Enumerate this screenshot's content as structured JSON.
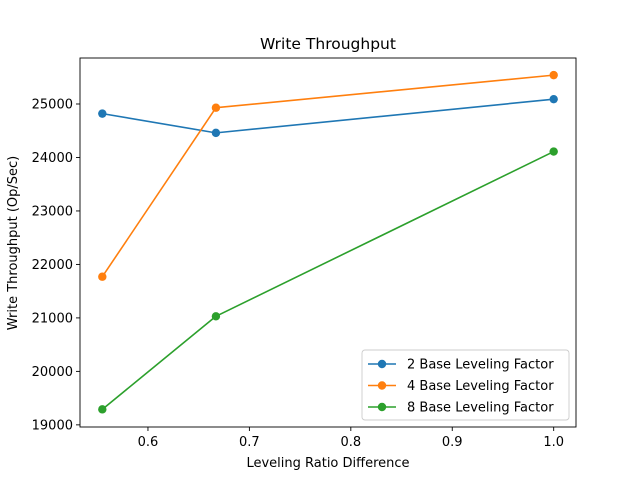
{
  "chart_data": {
    "type": "line",
    "title": "Write Throughput",
    "xlabel": "Leveling Ratio Difference",
    "ylabel": "Write Throughput (Op/Sec)",
    "xlim": [
      0.533,
      1.022
    ],
    "ylim": [
      18960,
      25860
    ],
    "xticks": [
      0.6,
      0.7,
      0.8,
      0.9,
      1.0
    ],
    "xtick_labels": [
      "0.6",
      "0.7",
      "0.8",
      "0.9",
      "1.0"
    ],
    "yticks": [
      19000,
      20000,
      21000,
      22000,
      23000,
      24000,
      25000
    ],
    "ytick_labels": [
      "19000",
      "20000",
      "21000",
      "22000",
      "23000",
      "24000",
      "25000"
    ],
    "x": [
      0.555,
      0.667,
      1.0
    ],
    "series": [
      {
        "name": "2 Base Leveling Factor",
        "color": "#1f77b4",
        "values": [
          24820,
          24460,
          25090
        ]
      },
      {
        "name": "4 Base Leveling Factor",
        "color": "#ff7f0e",
        "values": [
          21770,
          24930,
          25540
        ]
      },
      {
        "name": "8 Base Leveling Factor",
        "color": "#2ca02c",
        "values": [
          19290,
          21030,
          24110
        ]
      }
    ],
    "legend_position": "lower-right",
    "grid": false,
    "marker": "circle"
  }
}
